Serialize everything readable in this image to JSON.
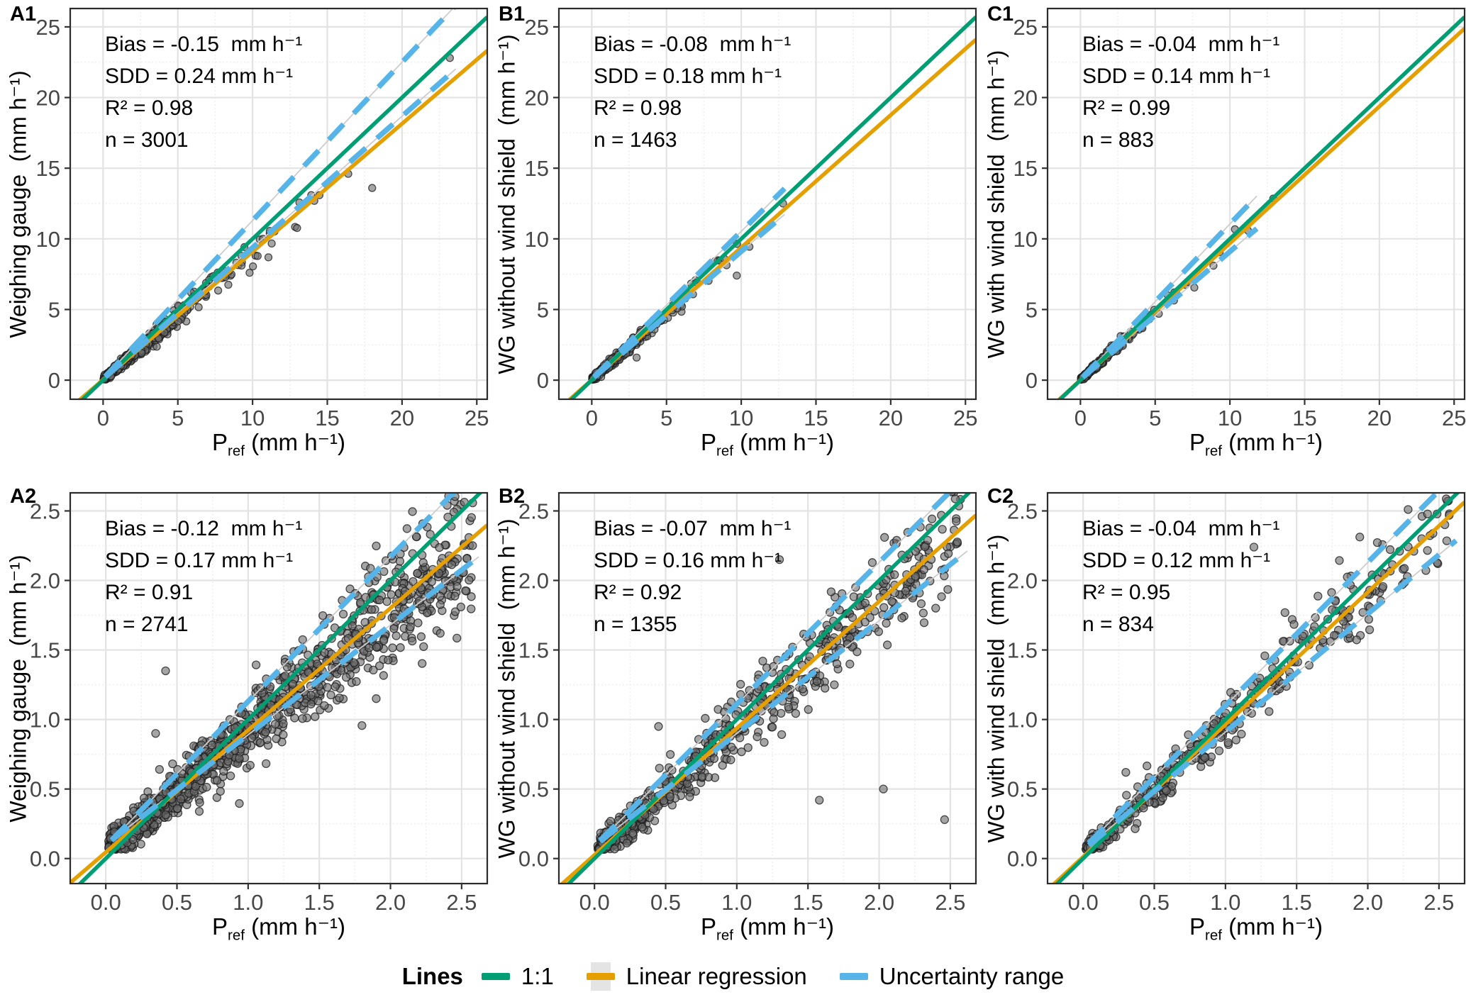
{
  "figure": {
    "xlabel": {
      "p": "P",
      "sub": "ref",
      "rest": " (mm h⁻¹)"
    },
    "ylabels": [
      "Weighing gauge  (mm h⁻¹)",
      "WG without wind shield  (mm h⁻¹)",
      "WG with wind shield  (mm h⁻¹)"
    ],
    "colors": {
      "one_to_one": "#009E73",
      "regression": "#E69F00",
      "uncertainty": "#56B4E9",
      "uncertainty_underlay": "#cccccc",
      "point_fill": "#6e6e6e",
      "point_stroke": "#1a1a1a",
      "grid_major": "#e3e3e3",
      "grid_minor": "#efefef",
      "panel_border": "#2b2b2b",
      "tick_text": "#474747"
    },
    "legend": {
      "title": "Lines",
      "items": [
        {
          "label": "1:1",
          "type": "solid"
        },
        {
          "label": "Linear regression",
          "type": "ribbon"
        },
        {
          "label": "Uncertainty range",
          "type": "dashed"
        }
      ]
    }
  },
  "chart_data": [
    {
      "id": "A1",
      "type": "scatter",
      "x_axis": {
        "ticks": [
          0,
          5,
          10,
          15,
          20,
          25
        ],
        "tick_labels": [
          "0",
          "5",
          "10",
          "15",
          "20",
          "25"
        ],
        "range": [
          -2.2,
          25.7
        ]
      },
      "y_axis": {
        "ticks": [
          0,
          5,
          10,
          15,
          20,
          25
        ],
        "tick_labels": [
          "0",
          "5",
          "10",
          "15",
          "20",
          "25"
        ],
        "range": [
          -1.35,
          26.3
        ]
      },
      "stats": {
        "bias": -0.15,
        "sdd": 0.24,
        "r2": 0.98,
        "n": 3001
      },
      "annotation_lines": [
        "Bias = -0.15  mm h⁻¹",
        "SDD = 0.24 mm h⁻¹",
        "R² = 0.98",
        "n = 3001"
      ],
      "lines": {
        "one_to_one": {
          "slope": 1,
          "intercept": 0
        },
        "regression": {
          "slope": 0.906,
          "intercept": 0.03
        },
        "uncertainty_upper": {
          "slope": 1.12,
          "intercept": 0.1
        },
        "uncertainty_lower": {
          "slope": 0.93,
          "intercept": 0.08
        },
        "uncertainty_x_range": [
          0.15,
          23.6
        ]
      },
      "scatter": {
        "n_rendered": 470,
        "x_dist": "exp",
        "x_scale": 2.9,
        "x_max": 23.4,
        "noise_base": 0.1,
        "noise_slope": 0.055,
        "seed": 101,
        "radius": 5,
        "outliers": [
          [
            18.0,
            13.6
          ],
          [
            16.4,
            14.6
          ],
          [
            23.2,
            22.8
          ],
          [
            9.8,
            7.6
          ]
        ]
      }
    },
    {
      "id": "B1",
      "type": "scatter",
      "x_axis": {
        "ticks": [
          0,
          5,
          10,
          15,
          20,
          25
        ],
        "tick_labels": [
          "0",
          "5",
          "10",
          "15",
          "20",
          "25"
        ],
        "range": [
          -2.2,
          25.7
        ]
      },
      "y_axis": {
        "ticks": [
          0,
          5,
          10,
          15,
          20,
          25
        ],
        "tick_labels": [
          "0",
          "5",
          "10",
          "15",
          "20",
          "25"
        ],
        "range": [
          -1.35,
          26.3
        ]
      },
      "stats": {
        "bias": -0.08,
        "sdd": 0.18,
        "r2": 0.98,
        "n": 1463
      },
      "annotation_lines": [
        "Bias = -0.08  mm h⁻¹",
        "SDD = 0.18 mm h⁻¹",
        "R² = 0.98",
        "n = 1463"
      ],
      "lines": {
        "one_to_one": {
          "slope": 1,
          "intercept": 0
        },
        "regression": {
          "slope": 0.937,
          "intercept": 0.02
        },
        "uncertainty_upper": {
          "slope": 1.045,
          "intercept": 0.08
        },
        "uncertainty_lower": {
          "slope": 0.905,
          "intercept": 0.06
        },
        "uncertainty_x_range": [
          0.15,
          12.9
        ]
      },
      "scatter": {
        "n_rendered": 300,
        "x_dist": "exp",
        "x_scale": 2.1,
        "x_max": 12.9,
        "noise_base": 0.09,
        "noise_slope": 0.05,
        "seed": 102,
        "radius": 5,
        "outliers": [
          [
            9.7,
            7.4
          ],
          [
            12.8,
            12.5
          ],
          [
            3.0,
            1.6
          ]
        ]
      }
    },
    {
      "id": "C1",
      "type": "scatter",
      "x_axis": {
        "ticks": [
          0,
          5,
          10,
          15,
          20,
          25
        ],
        "tick_labels": [
          "0",
          "5",
          "10",
          "15",
          "20",
          "25"
        ],
        "range": [
          -2.2,
          25.7
        ]
      },
      "y_axis": {
        "ticks": [
          0,
          5,
          10,
          15,
          20,
          25
        ],
        "tick_labels": [
          "0",
          "5",
          "10",
          "15",
          "20",
          "25"
        ],
        "range": [
          -1.35,
          26.3
        ]
      },
      "stats": {
        "bias": -0.04,
        "sdd": 0.14,
        "r2": 0.99,
        "n": 883
      },
      "annotation_lines": [
        "Bias = -0.04  mm h⁻¹",
        "SDD = 0.14 mm h⁻¹",
        "R² = 0.99",
        "n = 883"
      ],
      "lines": {
        "one_to_one": {
          "slope": 1,
          "intercept": 0
        },
        "regression": {
          "slope": 0.968,
          "intercept": 0.01
        },
        "uncertainty_upper": {
          "slope": 1.1,
          "intercept": 0.05
        },
        "uncertainty_lower": {
          "slope": 0.905,
          "intercept": 0.05
        },
        "uncertainty_x_range": [
          0.15,
          11.8
        ]
      },
      "scatter": {
        "n_rendered": 215,
        "x_dist": "exp",
        "x_scale": 1.8,
        "x_max": 12.9,
        "noise_base": 0.07,
        "noise_slope": 0.04,
        "seed": 103,
        "radius": 5,
        "outliers": [
          [
            12.9,
            12.85
          ],
          [
            11.2,
            10.6
          ],
          [
            8.9,
            8.1
          ]
        ]
      }
    },
    {
      "id": "A2",
      "type": "scatter",
      "x_axis": {
        "ticks": [
          0,
          0.5,
          1,
          1.5,
          2,
          2.5
        ],
        "tick_labels": [
          "0.0",
          "0.5",
          "1.0",
          "1.5",
          "2.0",
          "2.5"
        ],
        "range": [
          -0.25,
          2.68
        ]
      },
      "y_axis": {
        "ticks": [
          0,
          0.5,
          1,
          1.5,
          2,
          2.5
        ],
        "tick_labels": [
          "0.0",
          "0.5",
          "1.0",
          "1.5",
          "2.0",
          "2.5"
        ],
        "range": [
          -0.18,
          2.63
        ]
      },
      "stats": {
        "bias": -0.12,
        "sdd": 0.17,
        "r2": 0.91,
        "n": 2741
      },
      "annotation_lines": [
        "Bias = -0.12  mm h⁻¹",
        "SDD = 0.17 mm h⁻¹",
        "R² = 0.91",
        "n = 2741"
      ],
      "lines": {
        "one_to_one": {
          "slope": 1,
          "intercept": 0
        },
        "regression": {
          "slope": 0.878,
          "intercept": 0.045
        },
        "uncertainty_upper": {
          "slope": 1.04,
          "intercept": 0.09
        },
        "uncertainty_lower": {
          "slope": 0.79,
          "intercept": 0.1
        },
        "uncertainty_x_range": [
          0.04,
          2.62
        ]
      },
      "scatter": {
        "n_rendered": 1250,
        "x_dist": "pow",
        "x_scale": 2.58,
        "x_pow": 1.7,
        "x_max": 2.6,
        "noise_base": 0.05,
        "noise_slope": 0.075,
        "seed": 104,
        "radius": 5.5,
        "outliers": [
          [
            2.35,
            1.62
          ],
          [
            1.9,
            1.15
          ],
          [
            0.35,
            0.9
          ],
          [
            0.42,
            1.35
          ]
        ]
      }
    },
    {
      "id": "B2",
      "type": "scatter",
      "x_axis": {
        "ticks": [
          0,
          0.5,
          1,
          1.5,
          2,
          2.5
        ],
        "tick_labels": [
          "0.0",
          "0.5",
          "1.0",
          "1.5",
          "2.0",
          "2.5"
        ],
        "range": [
          -0.25,
          2.68
        ]
      },
      "y_axis": {
        "ticks": [
          0,
          0.5,
          1,
          1.5,
          2,
          2.5
        ],
        "tick_labels": [
          "0.0",
          "0.5",
          "1.0",
          "1.5",
          "2.0",
          "2.5"
        ],
        "range": [
          -0.18,
          2.63
        ]
      },
      "stats": {
        "bias": -0.07,
        "sdd": 0.16,
        "r2": 0.92,
        "n": 1355
      },
      "annotation_lines": [
        "Bias = -0.07  mm h⁻¹",
        "SDD = 0.16 mm h⁻¹",
        "R² = 0.92",
        "n = 1355"
      ],
      "lines": {
        "one_to_one": {
          "slope": 1,
          "intercept": 0
        },
        "regression": {
          "slope": 0.912,
          "intercept": 0.025
        },
        "uncertainty_upper": {
          "slope": 1.02,
          "intercept": 0.09
        },
        "uncertainty_lower": {
          "slope": 0.81,
          "intercept": 0.09
        },
        "uncertainty_x_range": [
          0.04,
          2.62
        ]
      },
      "scatter": {
        "n_rendered": 690,
        "x_dist": "pow",
        "x_scale": 2.58,
        "x_pow": 1.6,
        "x_max": 2.6,
        "noise_base": 0.045,
        "noise_slope": 0.065,
        "seed": 105,
        "radius": 5.5,
        "outliers": [
          [
            2.03,
            0.5
          ],
          [
            2.46,
            0.28
          ],
          [
            1.58,
            0.42
          ],
          [
            0.45,
            0.95
          ],
          [
            1.3,
            2.15
          ]
        ]
      }
    },
    {
      "id": "C2",
      "type": "scatter",
      "x_axis": {
        "ticks": [
          0,
          0.5,
          1,
          1.5,
          2,
          2.5
        ],
        "tick_labels": [
          "0.0",
          "0.5",
          "1.0",
          "1.5",
          "2.0",
          "2.5"
        ],
        "range": [
          -0.25,
          2.68
        ]
      },
      "y_axis": {
        "ticks": [
          0,
          0.5,
          1,
          1.5,
          2,
          2.5
        ],
        "tick_labels": [
          "0.0",
          "0.5",
          "1.0",
          "1.5",
          "2.0",
          "2.5"
        ],
        "range": [
          -0.18,
          2.63
        ]
      },
      "stats": {
        "bias": -0.04,
        "sdd": 0.12,
        "r2": 0.95,
        "n": 834
      },
      "annotation_lines": [
        "Bias = -0.04  mm h⁻¹",
        "SDD = 0.12 mm h⁻¹",
        "R² = 0.95",
        "n = 834"
      ],
      "lines": {
        "one_to_one": {
          "slope": 1,
          "intercept": 0
        },
        "regression": {
          "slope": 0.952,
          "intercept": 0.012
        },
        "uncertainty_upper": {
          "slope": 1.03,
          "intercept": 0.07
        },
        "uncertainty_lower": {
          "slope": 0.85,
          "intercept": 0.06
        },
        "uncertainty_x_range": [
          0.04,
          2.62
        ]
      },
      "scatter": {
        "n_rendered": 425,
        "x_dist": "pow",
        "x_scale": 2.58,
        "x_pow": 1.7,
        "x_max": 2.6,
        "noise_base": 0.04,
        "noise_slope": 0.055,
        "seed": 106,
        "radius": 5.5,
        "outliers": [
          [
            1.2,
            2.24
          ],
          [
            0.3,
            0.62
          ]
        ]
      }
    }
  ]
}
